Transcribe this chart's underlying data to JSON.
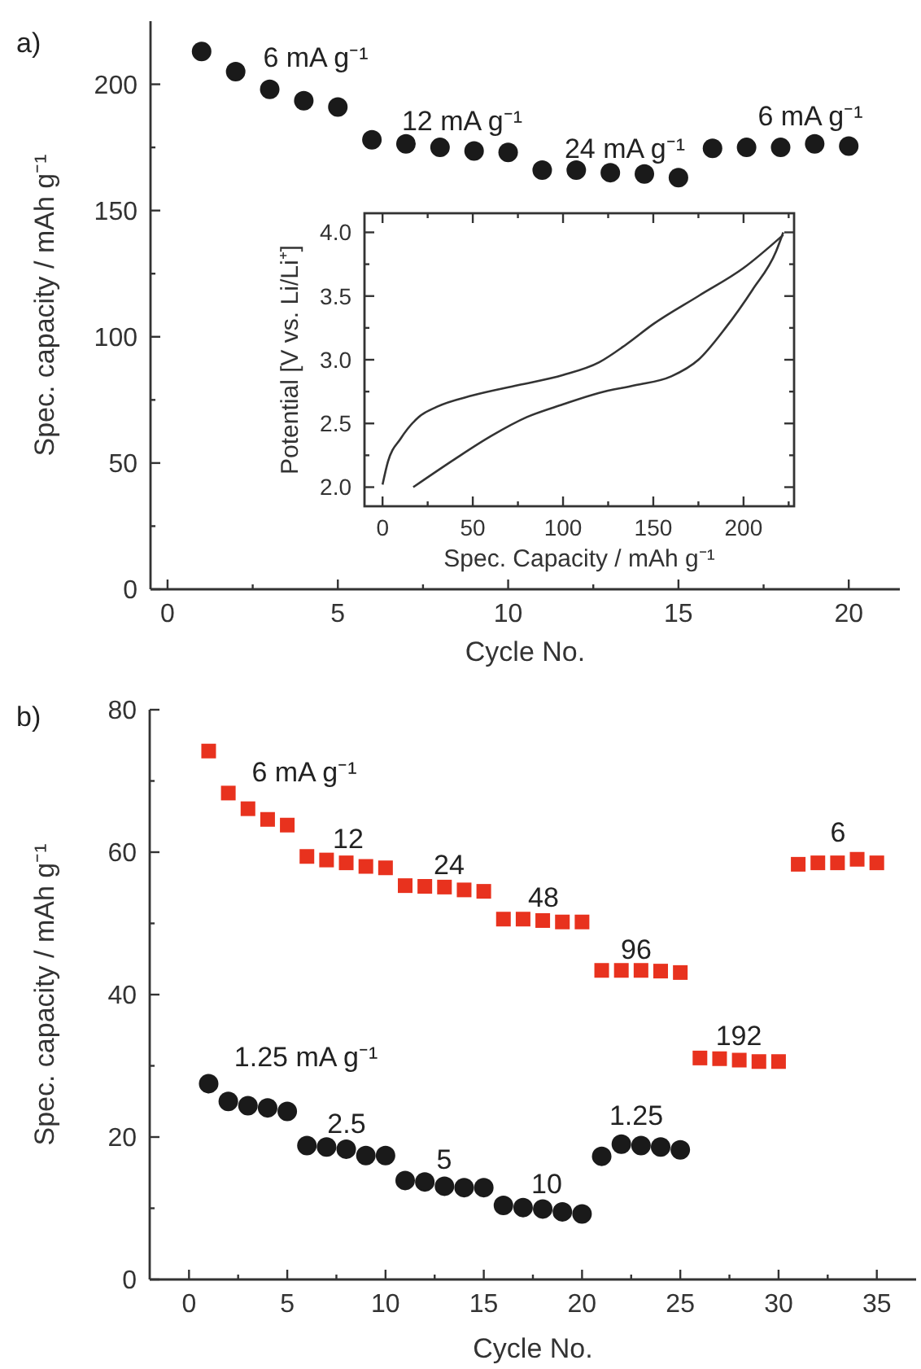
{
  "chart_data": [
    {
      "type": "scatter",
      "xlabel": "Cycle No.",
      "ylabel": "Spec. capacity / mAh g⁻¹",
      "xlim": [
        -0.5,
        21.5
      ],
      "ylim": [
        0,
        225
      ],
      "xticks": [
        0,
        {
          "value": 2.5,
          "label": null
        },
        5,
        {
          "value": 7.5,
          "label": null
        },
        10,
        {
          "value": 12.5,
          "label": null
        },
        15,
        {
          "value": 17.5,
          "label": null
        },
        20
      ],
      "yticks": [
        0,
        {
          "value": 25,
          "label": null
        },
        50,
        {
          "value": 75,
          "label": null
        },
        100,
        {
          "value": 125,
          "label": null
        },
        150,
        {
          "value": 175,
          "label": null
        },
        200
      ],
      "x": [
        1,
        2,
        3,
        4,
        5,
        6,
        7,
        8,
        9,
        10,
        11,
        12,
        13,
        14,
        15,
        16,
        17,
        18,
        19,
        20
      ],
      "series": [
        {
          "color": "#1a1a1a",
          "marker": "circle",
          "values": [
            213,
            205,
            198,
            193.5,
            191,
            178,
            176.4,
            175,
            173.6,
            173,
            166,
            166,
            165,
            164.5,
            163,
            174.6,
            175,
            175,
            176.4,
            175.5
          ]
        }
      ],
      "grid": false,
      "annotations": [
        "a)",
        "6 mA g⁻¹",
        "12 mA g⁻¹",
        "24 mA g⁻¹",
        "6 mA g⁻¹"
      ]
    },
    {
      "type": "line",
      "xlabel": "Spec. Capacity / mAh g⁻¹",
      "ylabel": "Potential [V vs. Li/Li⁺]",
      "xlim": [
        -10,
        228
      ],
      "ylim": [
        1.85,
        4.15
      ],
      "xticks": [
        0,
        {
          "value": 25,
          "label": null
        },
        50,
        {
          "value": 75,
          "label": null
        },
        100,
        {
          "value": 125,
          "label": null
        },
        150,
        {
          "value": 175,
          "label": null
        },
        200,
        {
          "value": 225,
          "label": null
        }
      ],
      "yticks": [
        {
          "value": 2,
          "label": "2.0"
        },
        {
          "value": 2.25,
          "label": null
        },
        2.5,
        {
          "value": 2.75,
          "label": null
        },
        {
          "value": 3,
          "label": "3.0"
        },
        {
          "value": 3.25,
          "label": null
        },
        3.5,
        {
          "value": 3.75,
          "label": null
        },
        {
          "value": 4,
          "label": "4.0"
        }
      ],
      "series": [
        {
          "color": "#333333",
          "x": [
            0,
            3,
            10,
            20,
            30,
            50,
            75,
            100,
            120,
            135,
            150,
            175,
            200,
            222
          ],
          "values": [
            2.02,
            2.2,
            2.38,
            2.55,
            2.63,
            2.72,
            2.8,
            2.88,
            2.98,
            3.12,
            3.28,
            3.5,
            3.72,
            3.98
          ]
        },
        {
          "color": "#333333",
          "x": [
            222,
            218,
            205,
            190,
            175,
            160,
            140,
            120,
            100,
            80,
            60,
            40,
            17
          ],
          "values": [
            4.0,
            3.85,
            3.55,
            3.25,
            3.0,
            2.87,
            2.8,
            2.74,
            2.65,
            2.55,
            2.4,
            2.22,
            2.0
          ]
        }
      ],
      "marker": "none",
      "line_style": "solid",
      "grid": false
    },
    {
      "type": "scatter",
      "xlabel": "Cycle No.",
      "ylabel": "Spec. capacity / mAh g⁻¹",
      "xlim": [
        -2,
        37
      ],
      "ylim": [
        0,
        80
      ],
      "xticks": [
        0,
        {
          "value": 2.5,
          "label": null
        },
        5,
        {
          "value": 7.5,
          "label": null
        },
        10,
        {
          "value": 12.5,
          "label": null
        },
        15,
        {
          "value": 17.5,
          "label": null
        },
        20,
        {
          "value": 22.5,
          "label": null
        },
        25,
        {
          "value": 27.5,
          "label": null
        },
        30,
        {
          "value": 32.5,
          "label": null
        },
        35
      ],
      "yticks": [
        0,
        {
          "value": 10,
          "label": null
        },
        20,
        {
          "value": 30,
          "label": null
        },
        40,
        {
          "value": 50,
          "label": null
        },
        60,
        {
          "value": 70,
          "label": null
        },
        80
      ],
      "x": [
        1,
        2,
        3,
        4,
        5,
        6,
        7,
        8,
        9,
        10,
        11,
        12,
        13,
        14,
        15,
        16,
        17,
        18,
        19,
        20,
        21,
        22,
        23,
        24,
        25,
        26,
        27,
        28,
        29,
        30,
        31,
        32,
        33,
        34,
        35
      ],
      "series": [
        {
          "color": "#e8321e",
          "marker": "square",
          "values": [
            74.2,
            68.3,
            66.1,
            64.6,
            63.8,
            59.4,
            58.9,
            58.5,
            58,
            57.8,
            55.3,
            55.2,
            55.1,
            54.7,
            54.5,
            50.6,
            50.6,
            50.4,
            50.2,
            50.2,
            43.4,
            43.4,
            43.4,
            43.3,
            43.1,
            31.1,
            31,
            30.8,
            30.6,
            30.6,
            58.3,
            58.5,
            58.5,
            59,
            58.5
          ]
        },
        {
          "color": "#1a1a1a",
          "marker": "circle",
          "x": [
            1,
            2,
            3,
            4,
            5,
            6,
            7,
            8,
            9,
            10,
            11,
            12,
            13,
            14,
            15,
            16,
            17,
            18,
            19,
            20,
            21,
            22,
            23,
            24,
            25
          ],
          "values": [
            27.5,
            25,
            24.4,
            24.1,
            23.6,
            18.8,
            18.6,
            18.3,
            17.4,
            17.4,
            13.9,
            13.7,
            13.1,
            12.9,
            12.9,
            10.4,
            10.1,
            9.9,
            9.5,
            9.2,
            17.3,
            19,
            18.8,
            18.6,
            18.2
          ]
        }
      ],
      "grid": false,
      "annotations": [
        "b)",
        "6 mA g⁻¹",
        "12",
        "24",
        "48",
        "96",
        "192",
        "6",
        "1.25 mA g⁻¹",
        "2.5",
        "5",
        "10",
        "1.25"
      ]
    }
  ]
}
